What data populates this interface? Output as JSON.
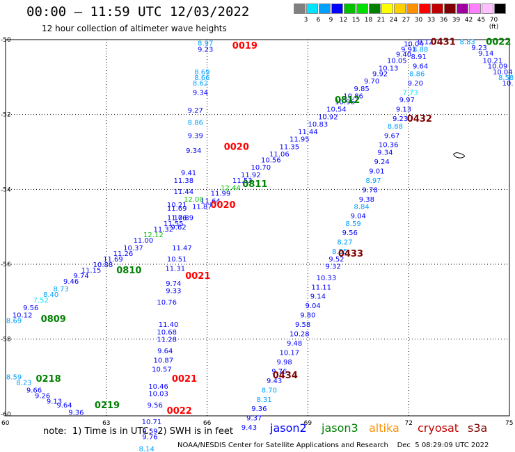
{
  "header": {
    "title": "00:00 – 11:59 UTC 12/03/2022",
    "subtitle": "12 hour collection of altimeter wave heights"
  },
  "color_scale": {
    "labels": [
      "3",
      "6",
      "9",
      "12",
      "15",
      "18",
      "21",
      "24",
      "27",
      "30",
      "33",
      "36",
      "39",
      "42",
      "45",
      "70 (ft)"
    ],
    "colors": [
      "#808080",
      "#00e5ff",
      "#00a0ff",
      "#0000ff",
      "#00c000",
      "#00e000",
      "#008000",
      "#ffff00",
      "#ffd000",
      "#ff9000",
      "#ff0000",
      "#c00000",
      "#800000",
      "#a000a0",
      "#ff80ff",
      "#ffc0ff",
      "#000000"
    ]
  },
  "axes": {
    "lat_labels": [
      "-50",
      "-52",
      "-54",
      "-56",
      "-58",
      "-60"
    ],
    "lon_labels": [
      "60",
      "63",
      "66",
      "69",
      "72",
      "75"
    ]
  },
  "chart_data": {
    "type": "scatter",
    "xlim": [
      60,
      75
    ],
    "ylim": [
      -60.05,
      -50
    ],
    "time_labels": [
      {
        "id": "0019",
        "lon": 66.75,
        "lat": -50.15,
        "color": "#ff0000"
      },
      {
        "id": "0020",
        "lon": 66.5,
        "lat": -52.85,
        "color": "#ff0000"
      },
      {
        "id": "0020",
        "lon": 66.1,
        "lat": -54.4,
        "color": "#ff0000"
      },
      {
        "id": "0021",
        "lon": 65.35,
        "lat": -56.3,
        "color": "#ff0000"
      },
      {
        "id": "0021",
        "lon": 64.95,
        "lat": -59.05,
        "color": "#ff0000"
      },
      {
        "id": "0022",
        "lon": 64.8,
        "lat": -59.9,
        "color": "#ff0000"
      },
      {
        "id": "0022",
        "lon": 74.3,
        "lat": -50.05,
        "color": "#008000"
      },
      {
        "id": "0431",
        "lon": 72.65,
        "lat": -50.05,
        "color": "#800000"
      },
      {
        "id": "0432",
        "lon": 71.95,
        "lat": -52.1,
        "color": "#800000"
      },
      {
        "id": "0433",
        "lon": 69.9,
        "lat": -55.7,
        "color": "#800000"
      },
      {
        "id": "0434",
        "lon": 67.95,
        "lat": -58.95,
        "color": "#800000"
      },
      {
        "id": "0812",
        "lon": 69.8,
        "lat": -51.6,
        "color": "#008000"
      },
      {
        "id": "0811",
        "lon": 67.05,
        "lat": -53.85,
        "color": "#008000"
      },
      {
        "id": "0810",
        "lon": 63.3,
        "lat": -56.15,
        "color": "#008000"
      },
      {
        "id": "0809",
        "lon": 61.05,
        "lat": -57.45,
        "color": "#008000"
      },
      {
        "id": "0218",
        "lon": 60.9,
        "lat": -59.05,
        "color": "#008000"
      },
      {
        "id": "0219",
        "lon": 62.65,
        "lat": -59.75,
        "color": "#008000"
      }
    ],
    "points": [
      {
        "v": "8.97",
        "lon": 65.95,
        "lat": -50.08,
        "c": "#00a0ff"
      },
      {
        "v": "9.23",
        "lon": 65.95,
        "lat": -50.25,
        "c": "#0000ff"
      },
      {
        "v": "8.69",
        "lon": 65.85,
        "lat": -50.85,
        "c": "#00a0ff"
      },
      {
        "v": "8.66",
        "lon": 65.85,
        "lat": -51.0,
        "c": "#00a0ff"
      },
      {
        "v": "8.62",
        "lon": 65.8,
        "lat": -51.15,
        "c": "#00a0ff"
      },
      {
        "v": "9.34",
        "lon": 65.8,
        "lat": -51.4,
        "c": "#0000ff"
      },
      {
        "v": "9.27",
        "lon": 65.65,
        "lat": -51.88,
        "c": "#0000ff"
      },
      {
        "v": "8.86",
        "lon": 65.65,
        "lat": -52.2,
        "c": "#00a0ff"
      },
      {
        "v": "9.39",
        "lon": 65.65,
        "lat": -52.55,
        "c": "#0000ff"
      },
      {
        "v": "9.34",
        "lon": 65.6,
        "lat": -52.95,
        "c": "#0000ff"
      },
      {
        "v": "9.41",
        "lon": 65.45,
        "lat": -53.55,
        "c": "#0000ff"
      },
      {
        "v": "11.38",
        "lon": 65.3,
        "lat": -53.75,
        "c": "#0000ff"
      },
      {
        "v": "11.44",
        "lon": 65.3,
        "lat": -54.05,
        "c": "#0000ff"
      },
      {
        "v": "12.00",
        "lon": 65.6,
        "lat": -54.25,
        "c": "#00c000"
      },
      {
        "v": "10.21",
        "lon": 65.1,
        "lat": -54.4,
        "c": "#0000ff"
      },
      {
        "v": "11.69",
        "lon": 65.1,
        "lat": -54.5,
        "c": "#0000ff"
      },
      {
        "v": "11.76",
        "lon": 65.1,
        "lat": -54.75,
        "c": "#0000ff"
      },
      {
        "v": "9.62",
        "lon": 65.15,
        "lat": -55.0,
        "c": "#0000ff"
      },
      {
        "v": "11.47",
        "lon": 65.25,
        "lat": -55.55,
        "c": "#0000ff"
      },
      {
        "v": "10.51",
        "lon": 65.1,
        "lat": -55.85,
        "c": "#0000ff"
      },
      {
        "v": "11.31",
        "lon": 65.05,
        "lat": -56.1,
        "c": "#0000ff"
      },
      {
        "v": "9.74",
        "lon": 65.0,
        "lat": -56.5,
        "c": "#0000ff"
      },
      {
        "v": "9.33",
        "lon": 65.0,
        "lat": -56.7,
        "c": "#0000ff"
      },
      {
        "v": "10.76",
        "lon": 64.8,
        "lat": -57.0,
        "c": "#0000ff"
      },
      {
        "v": "11.40",
        "lon": 64.85,
        "lat": -57.6,
        "c": "#0000ff"
      },
      {
        "v": "10.68",
        "lon": 64.8,
        "lat": -57.8,
        "c": "#0000ff"
      },
      {
        "v": "11.28",
        "lon": 64.8,
        "lat": -58.0,
        "c": "#0000ff"
      },
      {
        "v": "9.64",
        "lon": 64.75,
        "lat": -58.3,
        "c": "#0000ff"
      },
      {
        "v": "10.87",
        "lon": 64.7,
        "lat": -58.55,
        "c": "#0000ff"
      },
      {
        "v": "10.57",
        "lon": 64.65,
        "lat": -58.8,
        "c": "#0000ff"
      },
      {
        "v": "10.46",
        "lon": 64.55,
        "lat": -59.25,
        "c": "#0000ff"
      },
      {
        "v": "10.03",
        "lon": 64.55,
        "lat": -59.45,
        "c": "#0000ff"
      },
      {
        "v": "9.56",
        "lon": 64.45,
        "lat": -59.75,
        "c": "#0000ff"
      },
      {
        "v": "10.71",
        "lon": 64.35,
        "lat": -60.2,
        "c": "#0000ff"
      },
      {
        "v": "9.59",
        "lon": 64.3,
        "lat": -60.45,
        "c": "#0000ff"
      },
      {
        "v": "9.76",
        "lon": 64.3,
        "lat": -60.6,
        "c": "#0000ff"
      },
      {
        "v": "8.14",
        "lon": 64.2,
        "lat": -60.92,
        "c": "#00a0ff"
      },
      {
        "v": "8.59",
        "lon": 60.25,
        "lat": -59.0,
        "c": "#00a0ff"
      },
      {
        "v": "8.23",
        "lon": 60.55,
        "lat": -59.15,
        "c": "#00a0ff"
      },
      {
        "v": "9.66",
        "lon": 60.85,
        "lat": -59.35,
        "c": "#0000ff"
      },
      {
        "v": "9.26",
        "lon": 61.1,
        "lat": -59.5,
        "c": "#0000ff"
      },
      {
        "v": "9.13",
        "lon": 61.45,
        "lat": -59.65,
        "c": "#0000ff"
      },
      {
        "v": "9.64",
        "lon": 61.75,
        "lat": -59.75,
        "c": "#0000ff"
      },
      {
        "v": "9.36",
        "lon": 62.1,
        "lat": -59.95,
        "c": "#0000ff"
      },
      {
        "v": "8.69",
        "lon": 60.25,
        "lat": -57.5,
        "c": "#00a0ff"
      },
      {
        "v": "10.12",
        "lon": 60.5,
        "lat": -57.35,
        "c": "#0000ff"
      },
      {
        "v": "9.56",
        "lon": 60.75,
        "lat": -57.15,
        "c": "#0000ff"
      },
      {
        "v": "7.52",
        "lon": 61.05,
        "lat": -56.95,
        "c": "#00e5ff"
      },
      {
        "v": "8.40",
        "lon": 61.35,
        "lat": -56.8,
        "c": "#00a0ff"
      },
      {
        "v": "8.73",
        "lon": 61.65,
        "lat": -56.65,
        "c": "#00a0ff"
      },
      {
        "v": "9.46",
        "lon": 61.95,
        "lat": -56.45,
        "c": "#0000ff"
      },
      {
        "v": "9.74",
        "lon": 62.25,
        "lat": -56.3,
        "c": "#0000ff"
      },
      {
        "v": "11.15",
        "lon": 62.55,
        "lat": -56.15,
        "c": "#0000ff"
      },
      {
        "v": "10.88",
        "lon": 62.9,
        "lat": -56.0,
        "c": "#0000ff"
      },
      {
        "v": "11.69",
        "lon": 63.2,
        "lat": -55.85,
        "c": "#0000ff"
      },
      {
        "v": "11.26",
        "lon": 63.5,
        "lat": -55.7,
        "c": "#0000ff"
      },
      {
        "v": "10.37",
        "lon": 63.8,
        "lat": -55.55,
        "c": "#0000ff"
      },
      {
        "v": "11.00",
        "lon": 64.1,
        "lat": -55.35,
        "c": "#0000ff"
      },
      {
        "v": "12.12",
        "lon": 64.4,
        "lat": -55.2,
        "c": "#00c000"
      },
      {
        "v": "11.32",
        "lon": 64.7,
        "lat": -55.05,
        "c": "#0000ff"
      },
      {
        "v": "11.55",
        "lon": 65.0,
        "lat": -54.9,
        "c": "#0000ff"
      },
      {
        "v": "10.89",
        "lon": 65.3,
        "lat": -54.75,
        "c": "#0000ff"
      },
      {
        "v": "11.87",
        "lon": 65.85,
        "lat": -54.45,
        "c": "#0000ff"
      },
      {
        "v": "11.64",
        "lon": 66.1,
        "lat": -54.3,
        "c": "#0000ff"
      },
      {
        "v": "11.99",
        "lon": 66.4,
        "lat": -54.1,
        "c": "#0000ff"
      },
      {
        "v": "12.44",
        "lon": 66.7,
        "lat": -53.95,
        "c": "#00c000"
      },
      {
        "v": "11.53",
        "lon": 67.05,
        "lat": -53.75,
        "c": "#0000ff"
      },
      {
        "v": "11.92",
        "lon": 67.3,
        "lat": -53.6,
        "c": "#0000ff"
      },
      {
        "v": "10.70",
        "lon": 67.6,
        "lat": -53.4,
        "c": "#0000ff"
      },
      {
        "v": "10.56",
        "lon": 67.9,
        "lat": -53.2,
        "c": "#0000ff"
      },
      {
        "v": "11.06",
        "lon": 68.15,
        "lat": -53.05,
        "c": "#0000ff"
      },
      {
        "v": "11.35",
        "lon": 68.45,
        "lat": -52.85,
        "c": "#0000ff"
      },
      {
        "v": "11.95",
        "lon": 68.75,
        "lat": -52.65,
        "c": "#0000ff"
      },
      {
        "v": "11.44",
        "lon": 69.0,
        "lat": -52.45,
        "c": "#0000ff"
      },
      {
        "v": "10.83",
        "lon": 69.3,
        "lat": -52.25,
        "c": "#0000ff"
      },
      {
        "v": "10.92",
        "lon": 69.6,
        "lat": -52.05,
        "c": "#0000ff"
      },
      {
        "v": "10.54",
        "lon": 69.85,
        "lat": -51.85,
        "c": "#0000ff"
      },
      {
        "v": "10.96",
        "lon": 70.1,
        "lat": -51.65,
        "c": "#0000ff"
      },
      {
        "v": "10.86",
        "lon": 70.35,
        "lat": -51.5,
        "c": "#0000ff"
      },
      {
        "v": "9.85",
        "lon": 70.6,
        "lat": -51.3,
        "c": "#0000ff"
      },
      {
        "v": "9.70",
        "lon": 70.9,
        "lat": -51.1,
        "c": "#0000ff"
      },
      {
        "v": "9.92",
        "lon": 71.15,
        "lat": -50.9,
        "c": "#0000ff"
      },
      {
        "v": "10.13",
        "lon": 71.4,
        "lat": -50.75,
        "c": "#0000ff"
      },
      {
        "v": "10.05",
        "lon": 71.65,
        "lat": -50.55,
        "c": "#0000ff"
      },
      {
        "v": "9.40",
        "lon": 71.85,
        "lat": -50.38,
        "c": "#0000ff"
      },
      {
        "v": "9.91",
        "lon": 72.0,
        "lat": -50.25,
        "c": "#0000ff"
      },
      {
        "v": "10.04",
        "lon": 72.15,
        "lat": -50.1,
        "c": "#0000ff"
      },
      {
        "v": "9.12",
        "lon": 72.5,
        "lat": -50.05,
        "c": "#0000ff"
      },
      {
        "v": "8.83",
        "lon": 73.75,
        "lat": -50.05,
        "c": "#00a0ff"
      },
      {
        "v": "9.23",
        "lon": 74.1,
        "lat": -50.2,
        "c": "#0000ff"
      },
      {
        "v": "9.14",
        "lon": 74.3,
        "lat": -50.35,
        "c": "#0000ff"
      },
      {
        "v": "10.21",
        "lon": 74.5,
        "lat": -50.55,
        "c": "#0000ff"
      },
      {
        "v": "10.09",
        "lon": 74.65,
        "lat": -50.7,
        "c": "#0000ff"
      },
      {
        "v": "10.04",
        "lon": 74.8,
        "lat": -50.85,
        "c": "#0000ff"
      },
      {
        "v": "8.58",
        "lon": 74.9,
        "lat": -51.0,
        "c": "#00a0ff"
      },
      {
        "v": "10.",
        "lon": 74.95,
        "lat": -51.15,
        "c": "#0000ff"
      },
      {
        "v": "8.88",
        "lon": 72.35,
        "lat": -50.25,
        "c": "#00a0ff"
      },
      {
        "v": "8.91",
        "lon": 72.3,
        "lat": -50.45,
        "c": "#0000ff"
      },
      {
        "v": "9.64",
        "lon": 72.35,
        "lat": -50.7,
        "c": "#0000ff"
      },
      {
        "v": "8.86",
        "lon": 72.25,
        "lat": -50.9,
        "c": "#00a0ff"
      },
      {
        "v": "9.20",
        "lon": 72.2,
        "lat": -51.15,
        "c": "#0000ff"
      },
      {
        "v": "7.73",
        "lon": 72.05,
        "lat": -51.4,
        "c": "#00e5ff"
      },
      {
        "v": "9.97",
        "lon": 71.95,
        "lat": -51.6,
        "c": "#0000ff"
      },
      {
        "v": "9.13",
        "lon": 71.85,
        "lat": -51.85,
        "c": "#0000ff"
      },
      {
        "v": "9.23",
        "lon": 71.75,
        "lat": -52.1,
        "c": "#0000ff"
      },
      {
        "v": "8.88",
        "lon": 71.6,
        "lat": -52.3,
        "c": "#00a0ff"
      },
      {
        "v": "9.67",
        "lon": 71.5,
        "lat": -52.55,
        "c": "#0000ff"
      },
      {
        "v": "10.36",
        "lon": 71.4,
        "lat": -52.8,
        "c": "#0000ff"
      },
      {
        "v": "9.34",
        "lon": 71.3,
        "lat": -53.0,
        "c": "#0000ff"
      },
      {
        "v": "9.24",
        "lon": 71.2,
        "lat": -53.25,
        "c": "#0000ff"
      },
      {
        "v": "9.01",
        "lon": 71.05,
        "lat": -53.5,
        "c": "#0000ff"
      },
      {
        "v": "8.97",
        "lon": 70.95,
        "lat": -53.75,
        "c": "#00a0ff"
      },
      {
        "v": "9.78",
        "lon": 70.85,
        "lat": -54.0,
        "c": "#0000ff"
      },
      {
        "v": "9.38",
        "lon": 70.75,
        "lat": -54.25,
        "c": "#0000ff"
      },
      {
        "v": "8.84",
        "lon": 70.6,
        "lat": -54.45,
        "c": "#00a0ff"
      },
      {
        "v": "9.04",
        "lon": 70.5,
        "lat": -54.7,
        "c": "#0000ff"
      },
      {
        "v": "8.59",
        "lon": 70.35,
        "lat": -54.9,
        "c": "#00a0ff"
      },
      {
        "v": "9.56",
        "lon": 70.25,
        "lat": -55.15,
        "c": "#0000ff"
      },
      {
        "v": "8.27",
        "lon": 70.1,
        "lat": -55.4,
        "c": "#00a0ff"
      },
      {
        "v": "8.55",
        "lon": 69.95,
        "lat": -55.65,
        "c": "#00a0ff"
      },
      {
        "v": "9.52",
        "lon": 69.85,
        "lat": -55.85,
        "c": "#0000ff"
      },
      {
        "v": "9.32",
        "lon": 69.75,
        "lat": -56.05,
        "c": "#0000ff"
      },
      {
        "v": "10.33",
        "lon": 69.55,
        "lat": -56.35,
        "c": "#0000ff"
      },
      {
        "v": "11.11",
        "lon": 69.4,
        "lat": -56.6,
        "c": "#0000ff"
      },
      {
        "v": "9.14",
        "lon": 69.3,
        "lat": -56.85,
        "c": "#0000ff"
      },
      {
        "v": "9.04",
        "lon": 69.15,
        "lat": -57.1,
        "c": "#0000ff"
      },
      {
        "v": "9.80",
        "lon": 69.0,
        "lat": -57.35,
        "c": "#0000ff"
      },
      {
        "v": "9.58",
        "lon": 68.85,
        "lat": -57.6,
        "c": "#0000ff"
      },
      {
        "v": "10.28",
        "lon": 68.75,
        "lat": -57.85,
        "c": "#0000ff"
      },
      {
        "v": "9.48",
        "lon": 68.6,
        "lat": -58.1,
        "c": "#0000ff"
      },
      {
        "v": "10.17",
        "lon": 68.45,
        "lat": -58.35,
        "c": "#0000ff"
      },
      {
        "v": "9.98",
        "lon": 68.3,
        "lat": -58.6,
        "c": "#0000ff"
      },
      {
        "v": "9.76",
        "lon": 68.15,
        "lat": -58.85,
        "c": "#0000ff"
      },
      {
        "v": "9.43",
        "lon": 68.0,
        "lat": -59.1,
        "c": "#0000ff"
      },
      {
        "v": "8.70",
        "lon": 67.85,
        "lat": -59.35,
        "c": "#00a0ff"
      },
      {
        "v": "8.31",
        "lon": 67.7,
        "lat": -59.6,
        "c": "#00a0ff"
      },
      {
        "v": "9.36",
        "lon": 67.55,
        "lat": -59.85,
        "c": "#0000ff"
      },
      {
        "v": "9.37",
        "lon": 67.4,
        "lat": -60.1,
        "c": "#0000ff"
      },
      {
        "v": "9.43",
        "lon": 67.25,
        "lat": -60.35,
        "c": "#0000ff"
      }
    ]
  },
  "footer": {
    "note": "note:  1) Time is in UTC;  2) SWH is in feet",
    "satellites": [
      {
        "name": "jason2",
        "color": "#0000ff"
      },
      {
        "name": "jason3",
        "color": "#008000"
      },
      {
        "name": "altika",
        "color": "#ff9000"
      },
      {
        "name": "cryosat",
        "color": "#c00000"
      },
      {
        "name": "s3a",
        "color": "#800000"
      }
    ],
    "credit": "NOAA/NESDIS Center for Satellite Applications and Research    Dec  5 08:29:09 UTC 2022"
  }
}
